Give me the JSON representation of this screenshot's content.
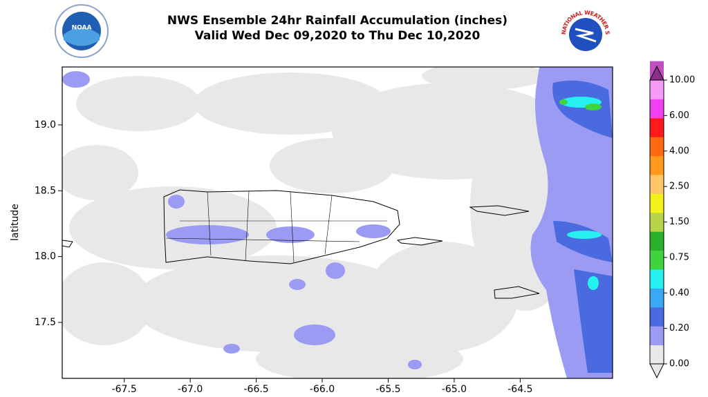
{
  "title": [
    "NWS Ensemble 24hr Rainfall Accumulation (inches)",
    "Valid Wed Dec 09,2020 to Thu Dec 10,2020"
  ],
  "logos": [
    "NOAA",
    "NATIONAL WEATHER SERVICE"
  ],
  "chart_data": {
    "type": "map",
    "ylabel": "latitude",
    "xlim": [
      -67.97,
      -63.8
    ],
    "ylim": [
      17.075,
      19.44
    ],
    "xticks": [
      -67.5,
      {
        "value": -67,
        "label": "-67.0"
      },
      -66.5,
      {
        "value": -66,
        "label": "-66.0"
      },
      -65.5,
      {
        "value": -65,
        "label": "-65.0"
      },
      -64.5
    ],
    "yticks": [
      {
        "value": 19,
        "label": "19.0"
      },
      18.5,
      {
        "value": 18,
        "label": "18.0"
      },
      17.5
    ],
    "colorbar": {
      "ticks": [
        {
          "value": 0,
          "label": "0.00"
        },
        {
          "value": 0.2,
          "label": "0.20"
        },
        {
          "value": 0.4,
          "label": "0.40"
        },
        {
          "value": 0.75,
          "label": "0.75"
        },
        {
          "value": 1.5,
          "label": "1.50"
        },
        {
          "value": 2.5,
          "label": "2.50"
        },
        {
          "value": 4,
          "label": "4.00"
        },
        {
          "value": 6,
          "label": "6.00"
        },
        {
          "value": 10,
          "label": "10.00"
        }
      ],
      "colors": [
        "#e8e8e8",
        "#9b9bf3",
        "#4a6ae0",
        "#3aa8f2",
        "#27f0f0",
        "#3fd43f",
        "#2ab02a",
        "#b9d44a",
        "#f2f21a",
        "#ffc866",
        "#ff9a1a",
        "#ff6a10",
        "#ff1a1a",
        "#f040f0",
        "#f59af5",
        "#c050c0",
        "#8a2f8a"
      ]
    }
  }
}
